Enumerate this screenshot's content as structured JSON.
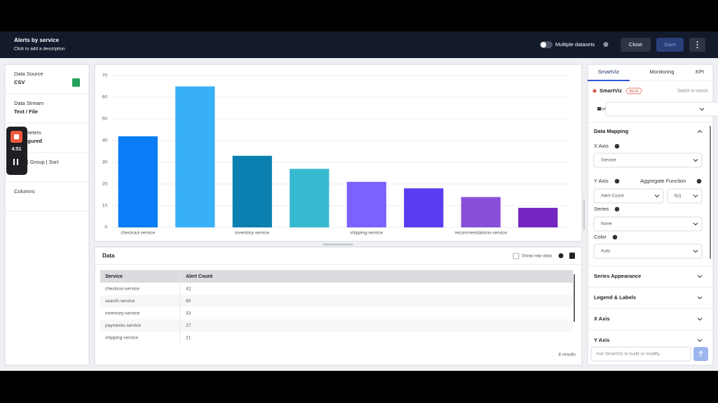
{
  "header": {
    "title": "Alerts by service",
    "description": "Click to add a description",
    "toggle_label": "Multiple datasets",
    "buttons": [
      "Close",
      "Save"
    ]
  },
  "left_panel": {
    "items": [
      {
        "label": "Data Source",
        "value": "CSV"
      },
      {
        "label": "Data Stream",
        "value": "Text / File"
      },
      {
        "label": "Parameters",
        "value": "Configured"
      },
      {
        "label": "Filter | Group | Sort"
      },
      {
        "label": "Columns"
      }
    ]
  },
  "recording": {
    "time": "4:51"
  },
  "chart_data": {
    "type": "bar",
    "categories": [
      "checkout-service",
      null,
      "inventory-service",
      null,
      "shipping-service",
      null,
      "recommendations-service",
      null
    ],
    "values": [
      42,
      65,
      33,
      27,
      21,
      18,
      14,
      9
    ],
    "colors": [
      "#0a7cf5",
      "#38b0f7",
      "#0a7fb0",
      "#37b9cf",
      "#7b61ff",
      "#5b3cf0",
      "#8a4fd8",
      "#7326c0"
    ],
    "ylim": [
      0,
      70
    ],
    "yticks": [
      0,
      10,
      20,
      30,
      40,
      50,
      60,
      70
    ],
    "grid": true
  },
  "data_panel": {
    "title": "Data",
    "show_raw": "Show raw data",
    "table": {
      "columns": [
        "Service",
        "Alert Count"
      ],
      "rows": [
        [
          "checkout-service",
          42
        ],
        [
          "search-service",
          65
        ],
        [
          "inventory-service",
          33
        ],
        [
          "payments-service",
          27
        ],
        [
          "shipping-service",
          21
        ]
      ]
    },
    "results": "8 results"
  },
  "right_panel": {
    "tabs": [
      "SmartViz",
      "Monitoring",
      "KPI"
    ],
    "smartviz": "SmartViz",
    "badge": "BETA",
    "switch": "Switch to classic",
    "chart_type": "Bar",
    "section": "Data Mapping",
    "x_axis_label": "X Axis",
    "x_axis_value": "Service",
    "y_axis_label": "Y Axis",
    "aggregate_label": "Aggregate Function",
    "y_axis_value": "Alert Count",
    "aggregate_value": "f(x)",
    "series_label": "Series",
    "series_value": "None",
    "color_label": "Color",
    "color_value": "Auto",
    "sections": [
      "Series Appearance",
      "Legend & Labels",
      "X Axis",
      "Y Axis"
    ],
    "prompt": "Ask SmartViz to build or modify..."
  }
}
